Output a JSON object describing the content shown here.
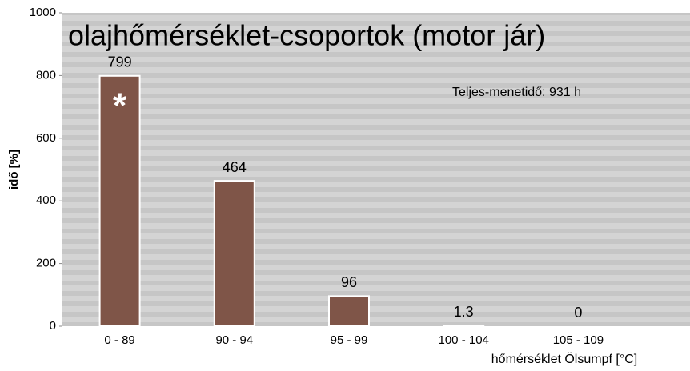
{
  "chart_data": {
    "type": "bar",
    "title": "olajhőmérséklet-csoportok (motor jár)",
    "y_label": "idő [%]",
    "x_label": "hőmérséklet Ölsumpf [°C]",
    "annotation": "Teljes-menetidő: 931 h",
    "bar_marker": "*",
    "categories": [
      "0 - 89",
      "90 - 94",
      "95 - 99",
      "100 - 104",
      "105 - 109"
    ],
    "values": [
      799,
      464,
      96,
      1.3,
      0
    ],
    "color": "#7f5548",
    "ylim": [
      0,
      1000
    ],
    "yticks": [
      0,
      200,
      400,
      600,
      800,
      1000
    ]
  }
}
